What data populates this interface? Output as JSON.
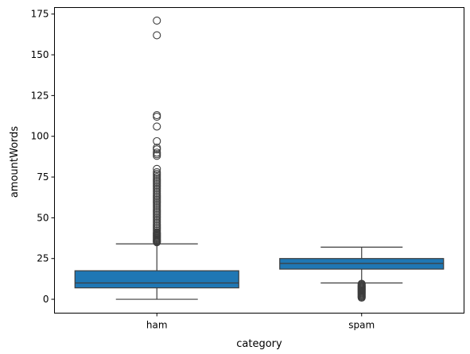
{
  "chart_data": {
    "type": "box",
    "title": "",
    "xlabel": "category",
    "ylabel": "amountWords",
    "categories": [
      "ham",
      "spam"
    ],
    "ylim": [
      -8.5,
      179
    ],
    "yticks": [
      0,
      25,
      50,
      75,
      100,
      125,
      150,
      175
    ],
    "box_color": "#1f77b4",
    "line_color": "#3d3d3d",
    "boxes": [
      {
        "category": "ham",
        "whisker_low": 0,
        "q1": 7,
        "median": 10,
        "q3": 17.5,
        "whisker_high": 34,
        "outliers": [
          35,
          35.5,
          36,
          36.5,
          37,
          37.5,
          38,
          38.5,
          39,
          39.5,
          40,
          40.5,
          41,
          42,
          43,
          44,
          45,
          46,
          47,
          48,
          49,
          50,
          51,
          52,
          53,
          54,
          55,
          56,
          57,
          58,
          59,
          60,
          61,
          62,
          63,
          64,
          65,
          66,
          67,
          68,
          69,
          70,
          71,
          72,
          73,
          74,
          75,
          76,
          77,
          78,
          80,
          88,
          89,
          90,
          92,
          93,
          97,
          106,
          112,
          113,
          162,
          171
        ]
      },
      {
        "category": "spam",
        "whisker_low": 10,
        "q1": 18.5,
        "median": 22,
        "q3": 25,
        "whisker_high": 32,
        "outliers": [
          1,
          1.5,
          2,
          2.5,
          3,
          3.5,
          4,
          4.5,
          5,
          5.5,
          6,
          6.5,
          7,
          7.5,
          8,
          8.5,
          9,
          9.5
        ]
      }
    ]
  }
}
